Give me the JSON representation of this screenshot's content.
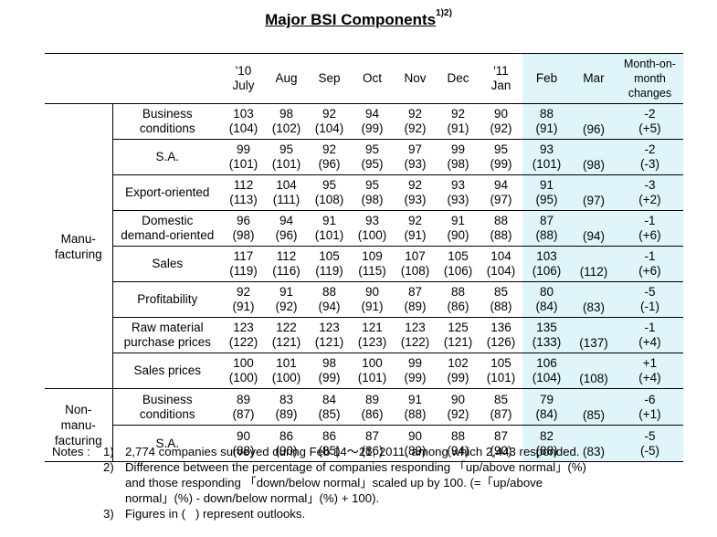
{
  "title": "Major BSI Components",
  "title_sup": "1)2)",
  "columns": [
    {
      "line1": "'10",
      "line2": "July"
    },
    {
      "line1": "",
      "line2": "Aug"
    },
    {
      "line1": "",
      "line2": "Sep"
    },
    {
      "line1": "",
      "line2": "Oct"
    },
    {
      "line1": "",
      "line2": "Nov"
    },
    {
      "line1": "",
      "line2": "Dec"
    },
    {
      "line1": "'11",
      "line2": "Jan"
    },
    {
      "line1": "",
      "line2": "Feb"
    },
    {
      "line1": "",
      "line2": "Mar"
    },
    {
      "line1": "Month-on-",
      "line2": "month",
      "line3": "changes"
    }
  ],
  "groups": [
    {
      "label1": "Manu-",
      "label2": "facturing",
      "rows": [
        {
          "l1": "Business",
          "l2": "conditions",
          "v": [
            "103",
            "98",
            "92",
            "94",
            "92",
            "92",
            "90",
            "88",
            "",
            "-2"
          ],
          "o": [
            "(104)",
            "(102)",
            "(104)",
            "(99)",
            "(92)",
            "(91)",
            "(92)",
            "(91)",
            "(96)",
            "(+5)"
          ]
        },
        {
          "l1": "S.A.",
          "l2": "",
          "v": [
            "99",
            "95",
            "92",
            "95",
            "97",
            "99",
            "95",
            "93",
            "",
            "-2"
          ],
          "o": [
            "(101)",
            "(101)",
            "(96)",
            "(95)",
            "(93)",
            "(98)",
            "(99)",
            "(101)",
            "(98)",
            "(-3)"
          ]
        },
        {
          "l1": "Export-oriented",
          "l2": "",
          "v": [
            "112",
            "104",
            "95",
            "95",
            "92",
            "93",
            "94",
            "91",
            "",
            "-3"
          ],
          "o": [
            "(113)",
            "(111)",
            "(108)",
            "(98)",
            "(93)",
            "(93)",
            "(97)",
            "(95)",
            "(97)",
            "(+2)"
          ]
        },
        {
          "l1": "Domestic",
          "l2": "demand-oriented",
          "v": [
            "96",
            "94",
            "91",
            "93",
            "92",
            "91",
            "88",
            "87",
            "",
            "-1"
          ],
          "o": [
            "(98)",
            "(96)",
            "(101)",
            "(100)",
            "(91)",
            "(90)",
            "(88)",
            "(88)",
            "(94)",
            "(+6)"
          ]
        },
        {
          "l1": "Sales",
          "l2": "",
          "v": [
            "117",
            "112",
            "105",
            "109",
            "107",
            "105",
            "104",
            "103",
            "",
            "-1"
          ],
          "o": [
            "(119)",
            "(116)",
            "(119)",
            "(115)",
            "(108)",
            "(106)",
            "(104)",
            "(106)",
            "(112)",
            "(+6)"
          ]
        },
        {
          "l1": "Profitability",
          "l2": "",
          "v": [
            "92",
            "91",
            "88",
            "90",
            "87",
            "88",
            "85",
            "80",
            "",
            "-5"
          ],
          "o": [
            "(91)",
            "(92)",
            "(94)",
            "(91)",
            "(89)",
            "(86)",
            "(88)",
            "(84)",
            "(83)",
            "(-1)"
          ]
        },
        {
          "l1": "Raw material",
          "l2": "purchase prices",
          "v": [
            "123",
            "122",
            "123",
            "121",
            "123",
            "125",
            "136",
            "135",
            "",
            "-1"
          ],
          "o": [
            "(122)",
            "(121)",
            "(121)",
            "(123)",
            "(122)",
            "(121)",
            "(126)",
            "(133)",
            "(137)",
            "(+4)"
          ]
        },
        {
          "l1": "Sales prices",
          "l2": "",
          "v": [
            "100",
            "101",
            "98",
            "100",
            "99",
            "102",
            "105",
            "106",
            "",
            "+1"
          ],
          "o": [
            "(100)",
            "(100)",
            "(99)",
            "(101)",
            "(99)",
            "(99)",
            "(101)",
            "(104)",
            "(108)",
            "(+4)"
          ]
        }
      ]
    },
    {
      "label1": "Non-",
      "label1b": "manu-",
      "label2": "facturing",
      "rows": [
        {
          "l1": "Business",
          "l2": "conditions",
          "v": [
            "89",
            "83",
            "84",
            "89",
            "91",
            "90",
            "85",
            "79",
            "",
            "-6"
          ],
          "o": [
            "(87)",
            "(89)",
            "(85)",
            "(86)",
            "(88)",
            "(92)",
            "(87)",
            "(84)",
            "(85)",
            "(+1)"
          ]
        },
        {
          "l1": "S.A.",
          "l2": "",
          "v": [
            "90",
            "86",
            "86",
            "87",
            "90",
            "88",
            "87",
            "82",
            "",
            "-5"
          ],
          "o": [
            "(88)",
            "(90)",
            "(85)",
            "(86)",
            "(89)",
            "(94)",
            "(90)",
            "(88)",
            "(83)",
            "(-5)"
          ]
        }
      ]
    }
  ],
  "notes": {
    "label": "Notes :",
    "n1_key": "1)",
    "n1": "2,774 companies surveyed during Feb 14～21, 2011, among which 2,443 responded.",
    "n2_key": "2)",
    "n2a": "Difference between the percentage of companies responding 「up/above normal」(%)",
    "n2b": "and those responding 「down/below normal」scaled up by 100. (=「up/above",
    "n2c": "normal」(%) - down/below normal」(%) + 100).",
    "n3_key": "3)",
    "n3": "Figures in (   ) represent outlooks."
  },
  "highlight_color": "#dff5f9"
}
